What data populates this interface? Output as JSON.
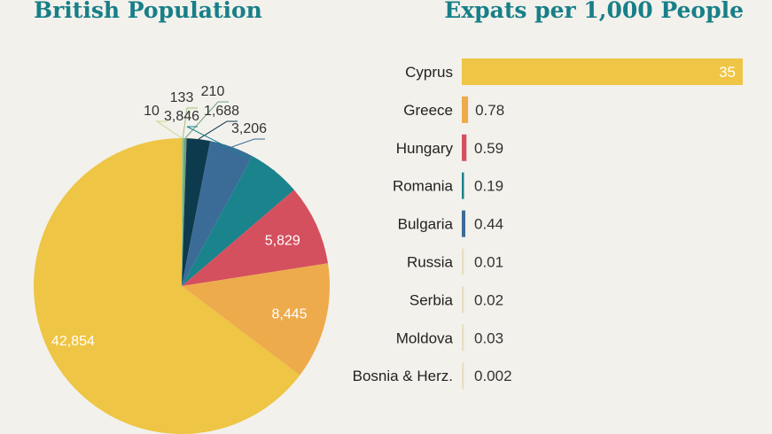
{
  "chart_data": [
    {
      "type": "pie",
      "title": "British Population",
      "slices": [
        {
          "label": "10",
          "value": 10,
          "color": "#c9d88a"
        },
        {
          "label": "133",
          "value": 133,
          "color": "#9fc37a"
        },
        {
          "label": "210",
          "value": 210,
          "color": "#6fa37f"
        },
        {
          "label": "1,688",
          "value": 1688,
          "color": "#0e3a4e"
        },
        {
          "label": "3,206",
          "value": 3206,
          "color": "#3b6c98"
        },
        {
          "label": "3,846",
          "value": 3846,
          "color": "#1a838c"
        },
        {
          "label": "5,829",
          "value": 5829,
          "color": "#d4505e"
        },
        {
          "label": "8,445",
          "value": 8445,
          "color": "#edab4c"
        },
        {
          "label": "42,854",
          "value": 42854,
          "color": "#eec544"
        }
      ]
    },
    {
      "type": "bar",
      "orientation": "horizontal",
      "title": "Expats per 1,000 People",
      "categories": [
        "Cyprus",
        "Greece",
        "Hungary",
        "Romania",
        "Bulgaria",
        "Russia",
        "Serbia",
        "Moldova",
        "Bosnia & Herz."
      ],
      "values": [
        35,
        0.78,
        0.59,
        0.19,
        0.44,
        0.01,
        0.02,
        0.03,
        0.002
      ],
      "value_labels": [
        "35",
        "0.78",
        "0.59",
        "0.19",
        "0.44",
        "0.01",
        "0.02",
        "0.03",
        "0.002"
      ],
      "colors": [
        "#eec544",
        "#edab4c",
        "#d4505e",
        "#1a838c",
        "#3b6c98",
        "#e8dfc4",
        "#e8dfc4",
        "#e8dfc4",
        "#e8dfc4"
      ],
      "label_inside_bar": [
        true,
        false,
        false,
        false,
        false,
        false,
        false,
        false,
        false
      ]
    }
  ]
}
